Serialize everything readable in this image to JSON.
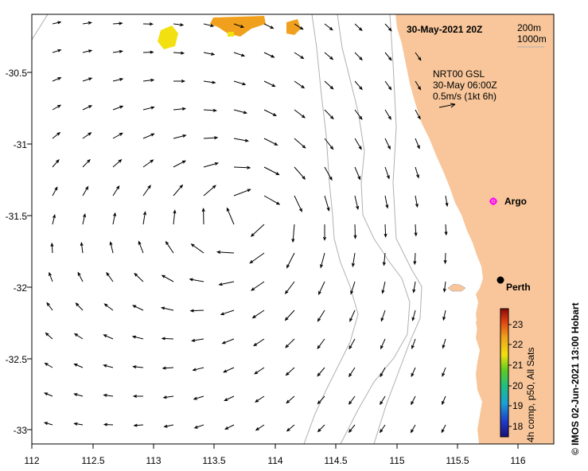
{
  "map": {
    "title": "30-May-2021 20Z",
    "isobath_legend": [
      "200m",
      "1000m"
    ],
    "current_info": {
      "line1": "NRT00 GSL",
      "line2": "30-May 06:00Z",
      "line3": "0.5m/s (1kt 6h)"
    },
    "places": {
      "argo": "Argo",
      "perth": "Perth"
    },
    "colorbar": {
      "label": "4h comp, p50, All Sats",
      "ticks": [
        "18",
        "19",
        "20",
        "21",
        "22",
        "23"
      ],
      "min": 17.5,
      "max": 23.8
    },
    "credit": "© IMOS 02-Jun-2021 13:00 Hobart",
    "x_ticks": [
      "112",
      "112.5",
      "113",
      "113.5",
      "114",
      "114.5",
      "115",
      "115.5",
      "116"
    ],
    "y_ticks": [
      "-30.5",
      "-31",
      "-31.5",
      "-32",
      "-32.5",
      "-33"
    ],
    "colors": {
      "land": "#f8c69a",
      "sst_warm": "#f0a01c",
      "sst_yellow": "#f2e010",
      "argo": "#ff00ff"
    }
  }
}
